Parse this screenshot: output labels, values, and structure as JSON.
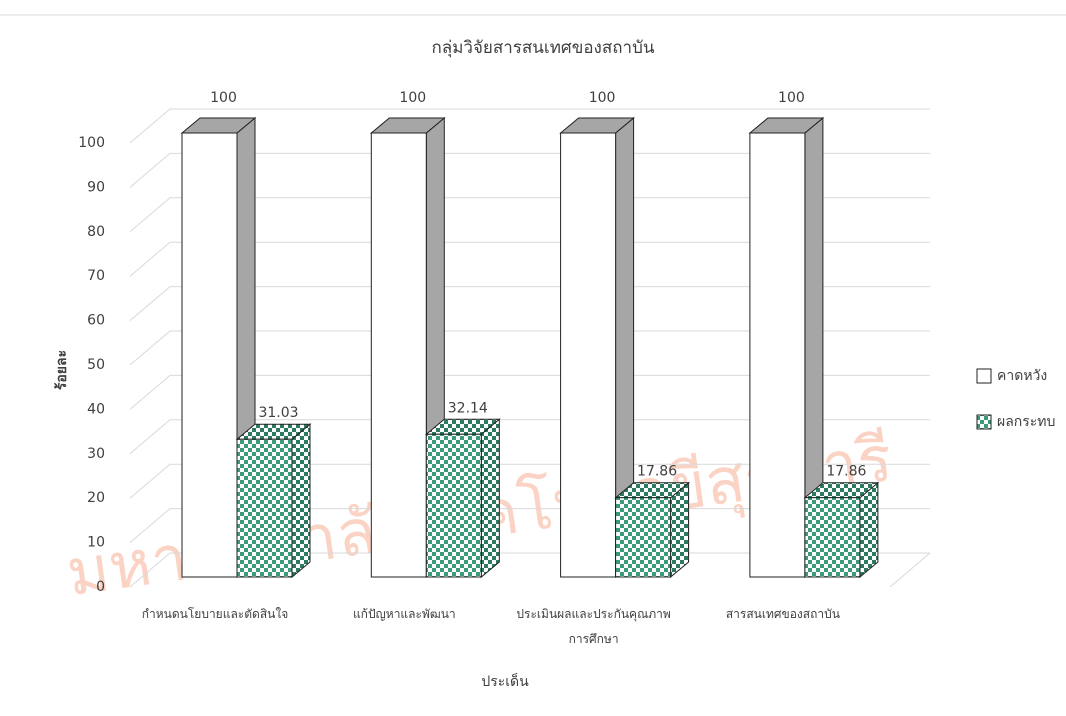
{
  "chart_data": {
    "type": "bar3d",
    "title": "กลุ่มวิจัยสารสนเทศของสถาบัน",
    "watermark": "มหาวิทยาลัยเทคโนโลยีสุรนารี",
    "x_label": "ประเด็น",
    "y_label": "ร้อยละ",
    "categories": [
      "กำหนดนโยบายและตัดสินใจ",
      "แก้ปัญหาและพัฒนา",
      "ประเมินผลและประกันคุณภาพ\nการศึกษา",
      "สารสนเทศของสถาบัน"
    ],
    "series": [
      {
        "name": "คาดหวัง",
        "color": "#ffffff",
        "side": "#a6a6a6",
        "values": [
          100,
          100,
          100,
          100
        ]
      },
      {
        "name": "ผลกระทบ",
        "color": "#3a9a7a",
        "side": "#2c7a60",
        "values": [
          31.03,
          32.14,
          17.86,
          17.86
        ]
      }
    ],
    "ylim": [
      0,
      100
    ],
    "yticks": [
      0,
      10,
      20,
      30,
      40,
      50,
      60,
      70,
      80,
      90,
      100
    ],
    "grid": true,
    "legend": "right"
  }
}
